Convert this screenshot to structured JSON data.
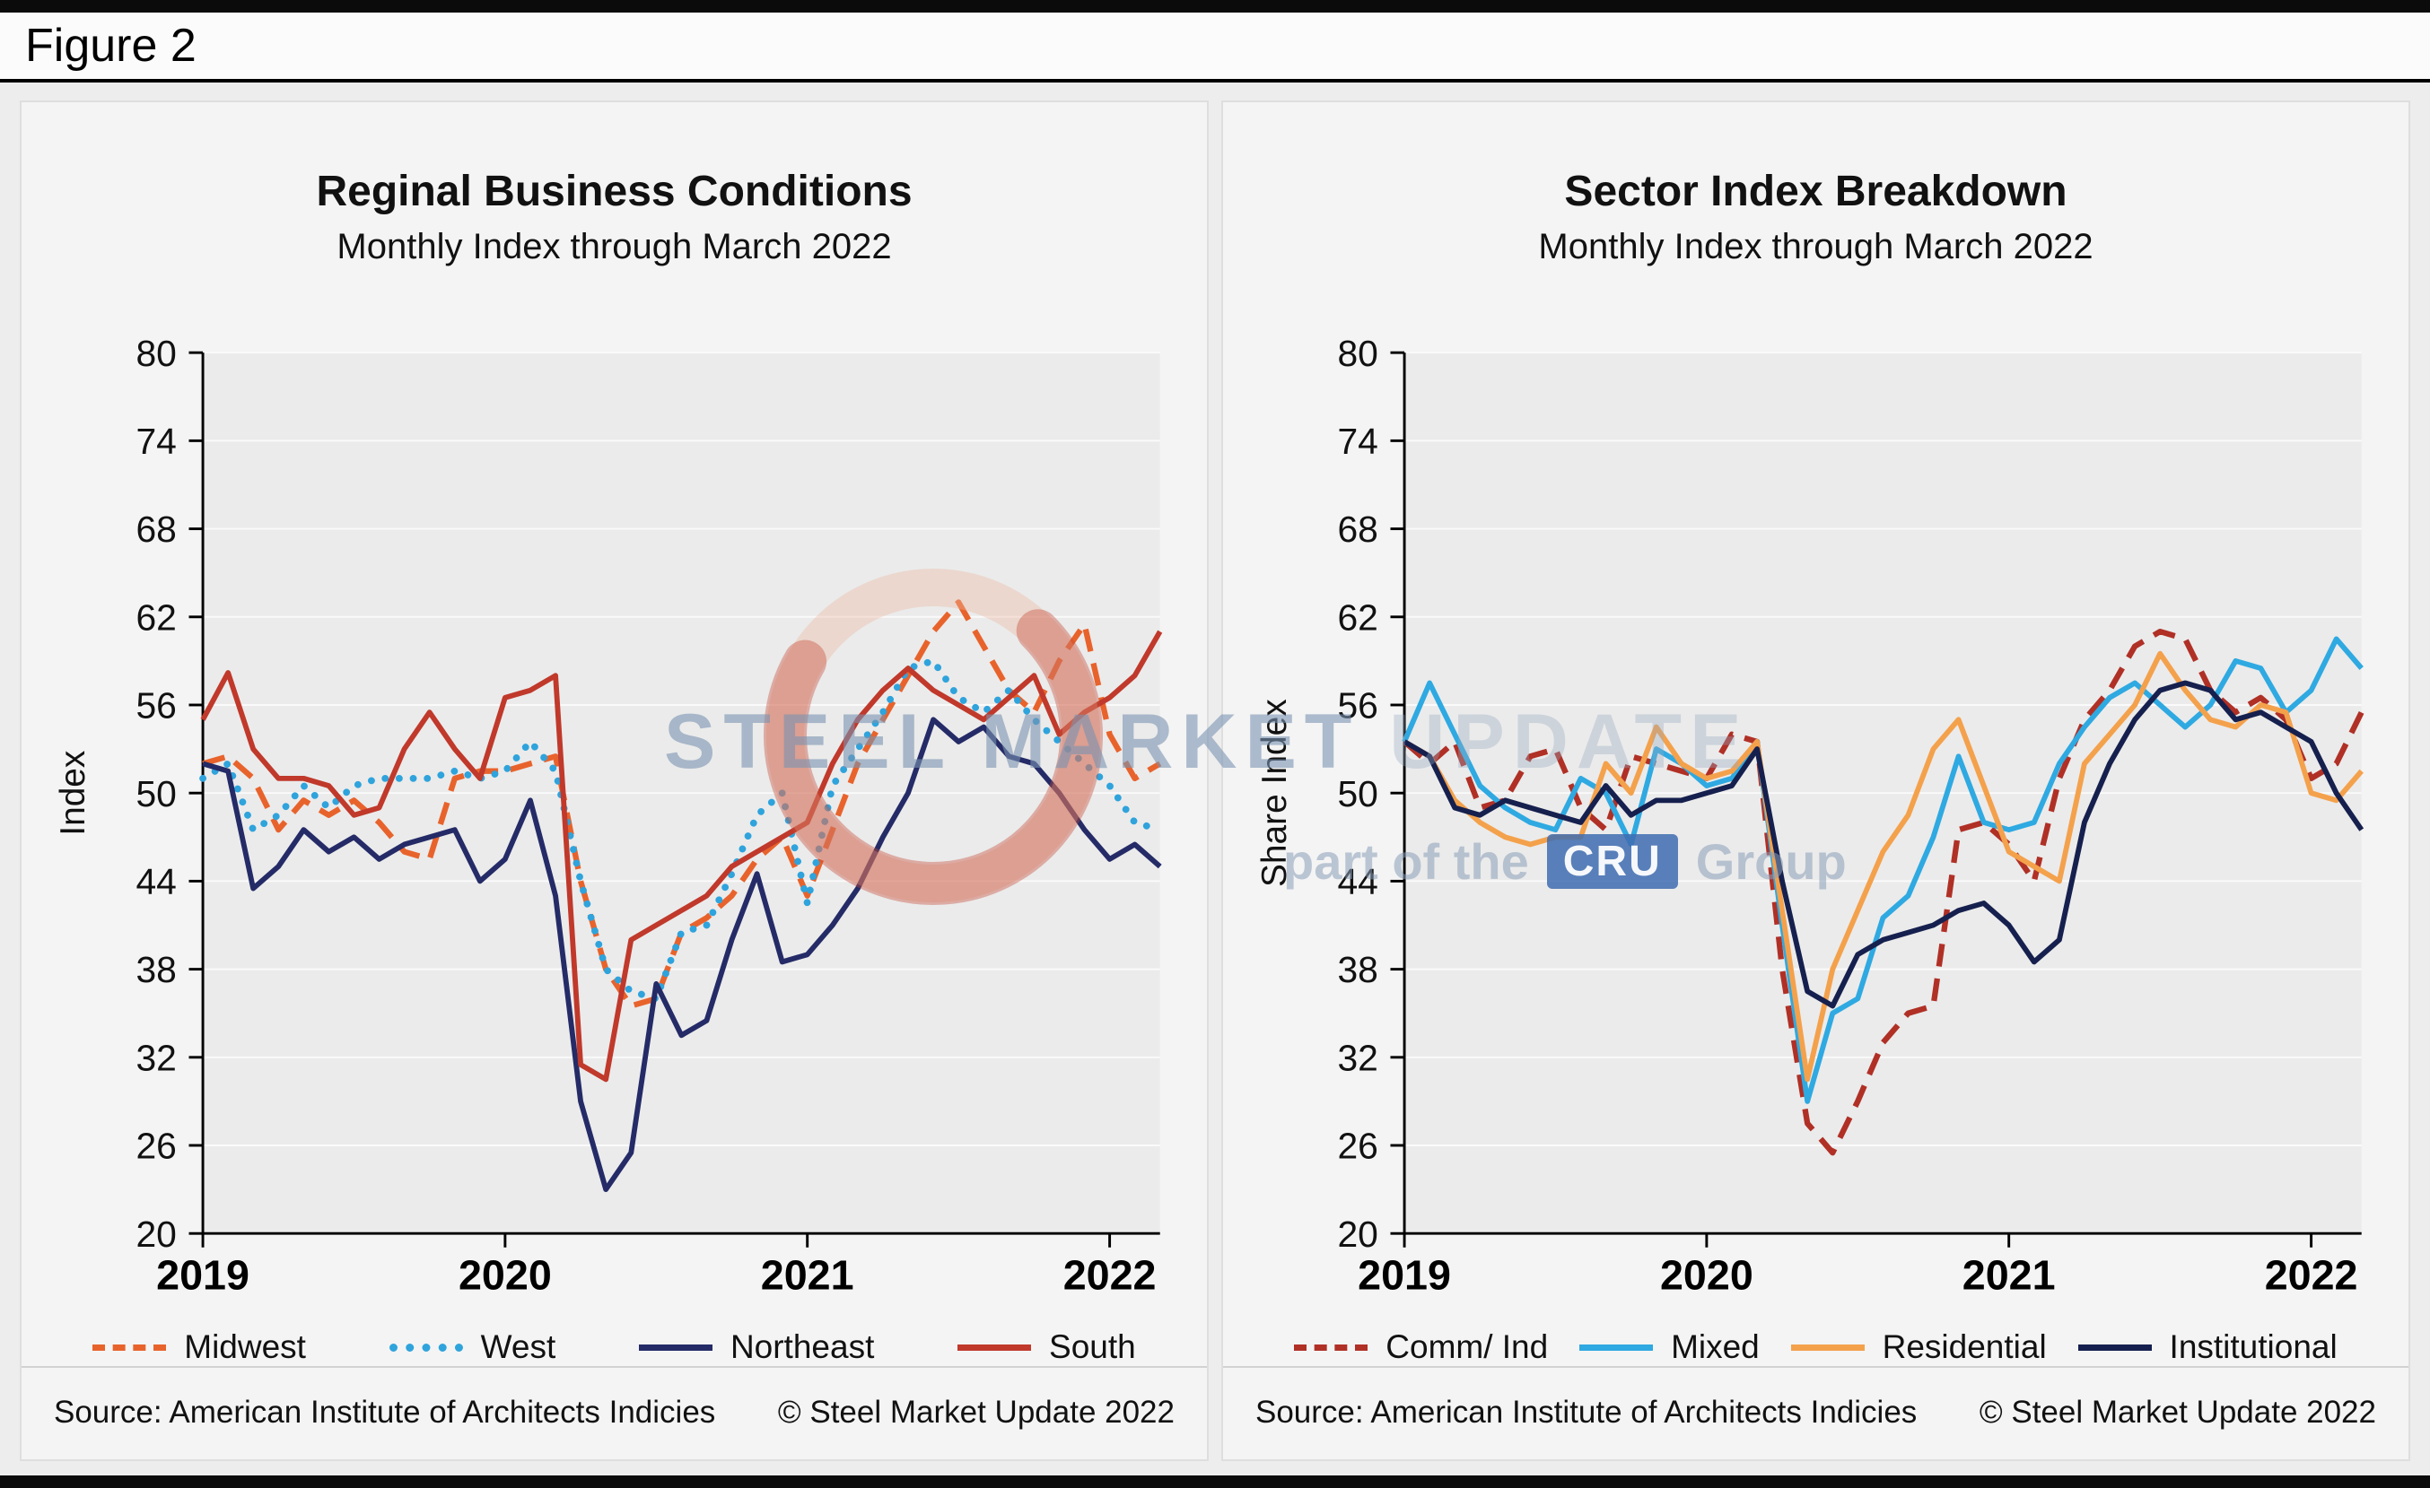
{
  "page": {
    "figure_label": "Figure 2"
  },
  "watermark": {
    "line1_strong": "STEEL MARKET",
    "line1_light": "UPDATE",
    "sub_prefix": "part of the",
    "cru_badge": "CRU",
    "sub_suffix": "Group"
  },
  "chart_data": [
    {
      "type": "line",
      "title": "Reginal Business Conditions",
      "subtitle": "Monthly Index through March 2022",
      "ylabel": "Index",
      "ylim": [
        20,
        80
      ],
      "yticks": [
        20,
        26,
        32,
        38,
        44,
        50,
        56,
        62,
        68,
        74,
        80
      ],
      "x_tick_labels": [
        "2019",
        "2020",
        "2021",
        "2022"
      ],
      "x_tick_month_indices": [
        0,
        12,
        24,
        36
      ],
      "x_range": "Jan 2019 - Mar 2022, monthly, 39 points",
      "grid": true,
      "legend_position": "bottom",
      "source": "Source: American Institute of Architects Indicies",
      "copyright": "© Steel Market Update 2022",
      "series": [
        {
          "name": "Midwest",
          "color": "#E8632C",
          "style": "dashed",
          "values": [
            52,
            52.5,
            51,
            47.5,
            49.5,
            48.5,
            49.5,
            48,
            46,
            45.5,
            51,
            51.5,
            51.5,
            52,
            52.5,
            44,
            38,
            35.5,
            36,
            40.5,
            41.5,
            43,
            45.5,
            47,
            43,
            47.5,
            52,
            55,
            58,
            61,
            63,
            60,
            57,
            55.5,
            59,
            61.5,
            54,
            51,
            52
          ]
        },
        {
          "name": "West",
          "color": "#2FA3DC",
          "style": "dotted",
          "values": [
            51,
            52,
            47.5,
            48.5,
            50.5,
            49,
            50.5,
            51,
            51,
            51,
            51.5,
            51,
            51.5,
            53.5,
            51.5,
            44,
            38,
            36.5,
            36,
            40.5,
            41,
            44.5,
            48.5,
            50,
            42.5,
            50.5,
            53,
            55.5,
            58.5,
            59,
            56.5,
            55.5,
            57,
            55,
            53.5,
            52,
            50.5,
            48,
            47.5
          ]
        },
        {
          "name": "Northeast",
          "color": "#242B67",
          "style": "solid",
          "values": [
            52,
            51.5,
            43.5,
            45,
            47.5,
            46,
            47,
            45.5,
            46.5,
            47,
            47.5,
            44,
            45.5,
            49.5,
            43,
            29,
            23,
            25.5,
            37,
            33.5,
            34.5,
            40,
            44.5,
            38.5,
            39,
            41,
            43.5,
            47,
            50,
            55,
            53.5,
            54.5,
            52.5,
            52,
            50,
            47.5,
            45.5,
            46.5,
            45
          ]
        },
        {
          "name": "South",
          "color": "#C0392B",
          "style": "solid",
          "values": [
            55,
            58.2,
            53,
            51,
            51,
            50.5,
            48.5,
            49,
            53,
            55.5,
            53,
            51,
            56.5,
            57,
            58,
            31.5,
            30.5,
            40,
            41,
            42,
            43,
            45,
            46,
            47,
            48,
            52,
            55,
            57,
            58.5,
            57,
            56,
            55,
            56.5,
            58,
            54,
            55.5,
            56.5,
            58,
            61
          ]
        }
      ]
    },
    {
      "type": "line",
      "title": "Sector Index Breakdown",
      "subtitle": "Monthly Index through March 2022",
      "ylabel": "Share Index",
      "ylim": [
        20,
        80
      ],
      "yticks": [
        20,
        26,
        32,
        38,
        44,
        50,
        56,
        62,
        68,
        74,
        80
      ],
      "x_tick_labels": [
        "2019",
        "2020",
        "2021",
        "2022"
      ],
      "x_tick_month_indices": [
        0,
        12,
        24,
        36
      ],
      "x_range": "Jan 2019 - Mar 2022, monthly, 39 points",
      "grid": true,
      "legend_position": "bottom",
      "source": "Source: American Institute of Architects Indicies",
      "copyright": "© Steel Market Update 2022",
      "series": [
        {
          "name": "Comm/ Ind",
          "color": "#B03026",
          "style": "dashed",
          "values": [
            53.5,
            52,
            53.5,
            49,
            49.5,
            52.5,
            53,
            49,
            47.5,
            52.5,
            52,
            51.5,
            51,
            54,
            53.5,
            38,
            27.5,
            25.5,
            29,
            33,
            35,
            35.5,
            47.5,
            48,
            46.5,
            44,
            51,
            55,
            57,
            60,
            61,
            60.5,
            57,
            55.5,
            56.5,
            55,
            51,
            52,
            55.5
          ]
        },
        {
          "name": "Mixed",
          "color": "#2FA9E1",
          "style": "solid",
          "values": [
            53.5,
            57.5,
            54,
            50.5,
            49,
            48,
            47.5,
            51,
            50,
            46.5,
            53,
            52,
            50.5,
            51,
            53.5,
            41,
            29,
            35,
            36,
            41.5,
            43,
            47,
            52.5,
            48,
            47.5,
            48,
            52,
            54.5,
            56.5,
            57.5,
            56,
            54.5,
            56,
            59,
            58.5,
            55.5,
            57,
            60.5,
            58.5
          ]
        },
        {
          "name": "Residential",
          "color": "#F4A14C",
          "style": "solid",
          "values": [
            53.5,
            52.5,
            49.5,
            48,
            47,
            46.5,
            47,
            47,
            52,
            50,
            54.5,
            52,
            51,
            51.5,
            53.5,
            42,
            30.5,
            38,
            42,
            46,
            48.5,
            53,
            55,
            50.5,
            46,
            45,
            44,
            52,
            54,
            56,
            59.5,
            57,
            55,
            54.5,
            56,
            55.5,
            50,
            49.5,
            51.5
          ]
        },
        {
          "name": "Institutional",
          "color": "#16204E",
          "style": "solid",
          "values": [
            53.5,
            52.5,
            49,
            48.5,
            49.5,
            49,
            48.5,
            48,
            50.5,
            48.5,
            49.5,
            49.5,
            50,
            50.5,
            53,
            44,
            36.5,
            35.5,
            39,
            40,
            40.5,
            41,
            42,
            42.5,
            41,
            38.5,
            40,
            48,
            52,
            55,
            57,
            57.5,
            57,
            55,
            55.5,
            54.5,
            53.5,
            50,
            47.5
          ]
        }
      ]
    }
  ]
}
